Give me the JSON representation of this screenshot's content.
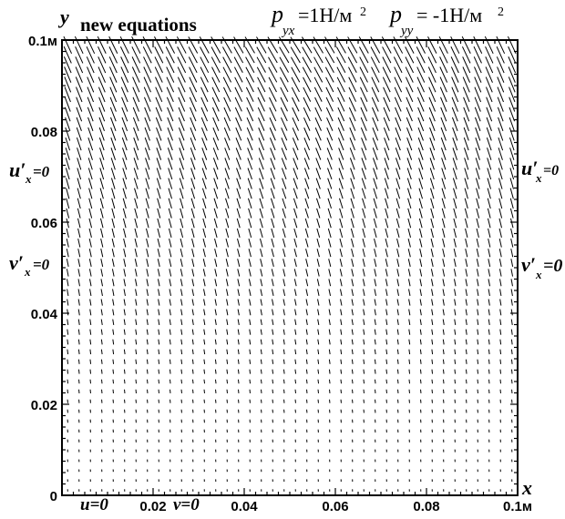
{
  "header": {
    "y_axis_symbol": "y",
    "title": "new equations",
    "p1_symbol": "p",
    "p1_subscript": "yx",
    "p1_value": "=1Н/м",
    "p1_exp": "2",
    "p2_symbol": "p",
    "p2_subscript": "yy",
    "p2_value": "= -1Н/м",
    "p2_exp": "2"
  },
  "chart_data": {
    "type": "vector-field",
    "xlim": [
      0,
      0.1
    ],
    "ylim": [
      0,
      0.1
    ],
    "x_label": "x",
    "y_label": "y",
    "x_ticks": [
      {
        "value": 0.02,
        "label": "0.02"
      },
      {
        "value": 0.04,
        "label": "0.04"
      },
      {
        "value": 0.06,
        "label": "0.06"
      },
      {
        "value": 0.08,
        "label": "0.08"
      },
      {
        "value": 0.1,
        "label": "0.1м"
      }
    ],
    "y_ticks": [
      {
        "value": 0,
        "label": "0"
      },
      {
        "value": 0.02,
        "label": "0.02"
      },
      {
        "value": 0.04,
        "label": "0.04"
      },
      {
        "value": 0.06,
        "label": "0.06"
      },
      {
        "value": 0.08,
        "label": "0.08"
      },
      {
        "value": 0.1,
        "label": "0.1м"
      }
    ],
    "field": {
      "nx": 40,
      "ny": 46,
      "max_magnitude": 0.0042,
      "top_angle_from_vertical_deg": 32,
      "bottom_angle_from_vertical_deg": 3,
      "direction": "down-right"
    },
    "boundary_conditions": {
      "bottom": [
        {
          "text": "u=0",
          "x": 0.0065
        },
        {
          "text": "v=0",
          "x": 0.029
        }
      ],
      "left": [
        "u'x=0",
        "v'x=0"
      ],
      "right": [
        "u'x=0",
        "v'x=0"
      ]
    }
  },
  "bc_text": {
    "u_prime": "u′",
    "v_prime": "v′",
    "sub_x": "x",
    "eq_zero": "=0",
    "bottom_u": "u=0",
    "bottom_v": "v=0"
  }
}
